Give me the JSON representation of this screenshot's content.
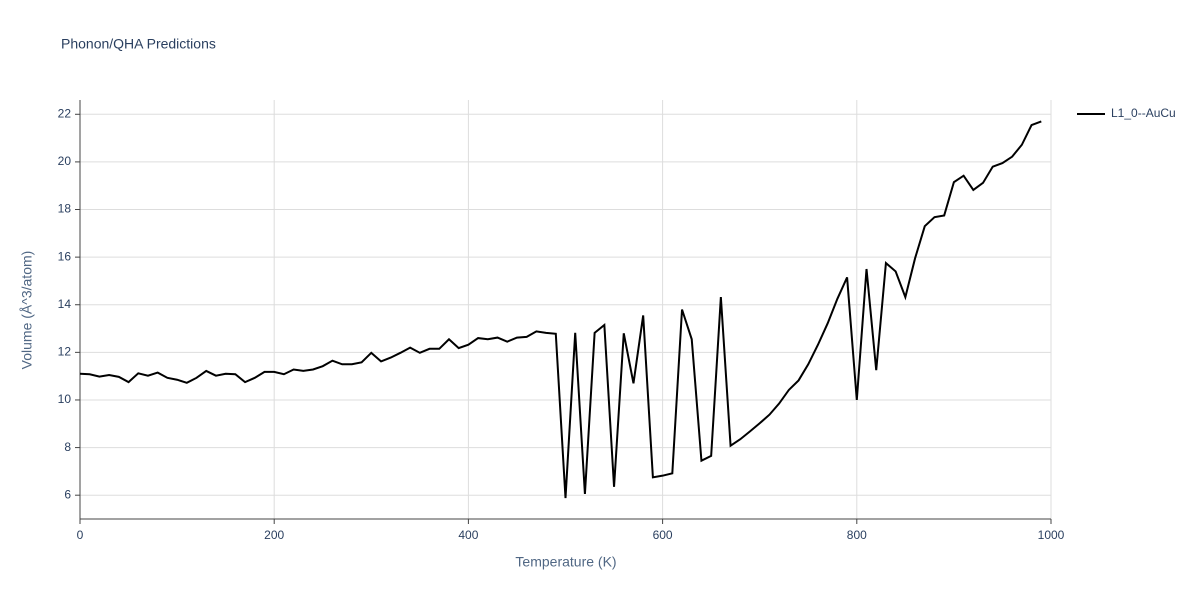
{
  "chart_data": {
    "type": "line",
    "title": "Phonon/QHA Predictions",
    "x_label": "Temperature (K)",
    "y_label": "Volume (Å^3/atom)",
    "x": [
      0,
      10,
      20,
      30,
      40,
      50,
      60,
      70,
      80,
      90,
      100,
      110,
      120,
      130,
      140,
      150,
      160,
      170,
      180,
      190,
      200,
      210,
      220,
      230,
      240,
      250,
      260,
      270,
      280,
      290,
      300,
      310,
      320,
      330,
      340,
      350,
      360,
      370,
      380,
      390,
      400,
      410,
      420,
      430,
      440,
      450,
      460,
      470,
      480,
      490,
      500,
      510,
      520,
      530,
      540,
      550,
      560,
      570,
      580,
      590,
      600,
      610,
      620,
      630,
      640,
      650,
      660,
      670,
      680,
      690,
      700,
      710,
      720,
      730,
      740,
      750,
      760,
      770,
      780,
      790,
      800,
      810,
      820,
      830,
      840,
      850,
      860,
      870,
      880,
      890,
      900,
      910,
      920,
      930,
      940,
      950,
      960,
      970,
      980,
      990
    ],
    "series": [
      {
        "name": "L1_0--AuCu",
        "color": "#000000",
        "values": [
          11.1,
          11.08,
          10.98,
          11.05,
          10.97,
          10.75,
          11.12,
          11.02,
          11.15,
          10.93,
          10.85,
          10.72,
          10.93,
          11.22,
          11.02,
          11.1,
          11.08,
          10.75,
          10.93,
          11.18,
          11.18,
          11.08,
          11.28,
          11.22,
          11.28,
          11.42,
          11.65,
          11.5,
          11.5,
          11.58,
          11.98,
          11.62,
          11.78,
          11.98,
          12.2,
          11.98,
          12.15,
          12.15,
          12.55,
          12.18,
          12.32,
          12.6,
          12.55,
          12.62,
          12.45,
          12.62,
          12.65,
          12.88,
          12.82,
          12.78,
          5.88,
          12.82,
          6.05,
          12.82,
          13.15,
          6.35,
          12.8,
          10.7,
          13.55,
          6.75,
          6.82,
          6.92,
          13.8,
          12.55,
          7.45,
          7.65,
          14.32,
          8.08,
          8.35,
          8.68,
          9.02,
          9.38,
          9.85,
          10.42,
          10.82,
          11.5,
          12.32,
          13.22,
          14.25,
          15.15,
          10.0,
          15.5,
          11.25,
          15.75,
          15.4,
          14.32,
          15.95,
          17.3,
          17.68,
          17.75,
          19.15,
          19.42,
          18.82,
          19.12,
          19.8,
          19.95,
          20.22,
          20.72,
          21.55,
          21.7
        ]
      }
    ],
    "xlim": [
      0,
      1000
    ],
    "xticks": [
      0,
      200,
      400,
      600,
      800,
      1000
    ],
    "ylim": [
      5,
      22.6
    ],
    "yticks": [
      6,
      8,
      10,
      12,
      14,
      16,
      18,
      20,
      22
    ],
    "grid": true,
    "legend_position": "right"
  }
}
